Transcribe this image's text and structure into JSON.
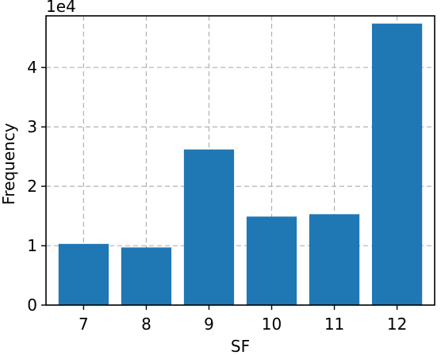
{
  "chart_data": {
    "type": "bar",
    "categories": [
      "7",
      "8",
      "9",
      "10",
      "11",
      "12"
    ],
    "values": [
      10300,
      9700,
      26200,
      14900,
      15300,
      47400
    ],
    "xlabel": "SF",
    "ylabel": "Frequency",
    "y_offset_label": "1e4",
    "ylim": [
      0,
      48700
    ],
    "y_ticks": [
      0,
      10000,
      20000,
      30000,
      40000
    ],
    "y_tick_labels": [
      "0",
      "1",
      "2",
      "3",
      "4"
    ],
    "grid": true,
    "grid_style": "dashed",
    "bar_color": "#1f77b4",
    "grid_color": "#b0b0b0"
  }
}
